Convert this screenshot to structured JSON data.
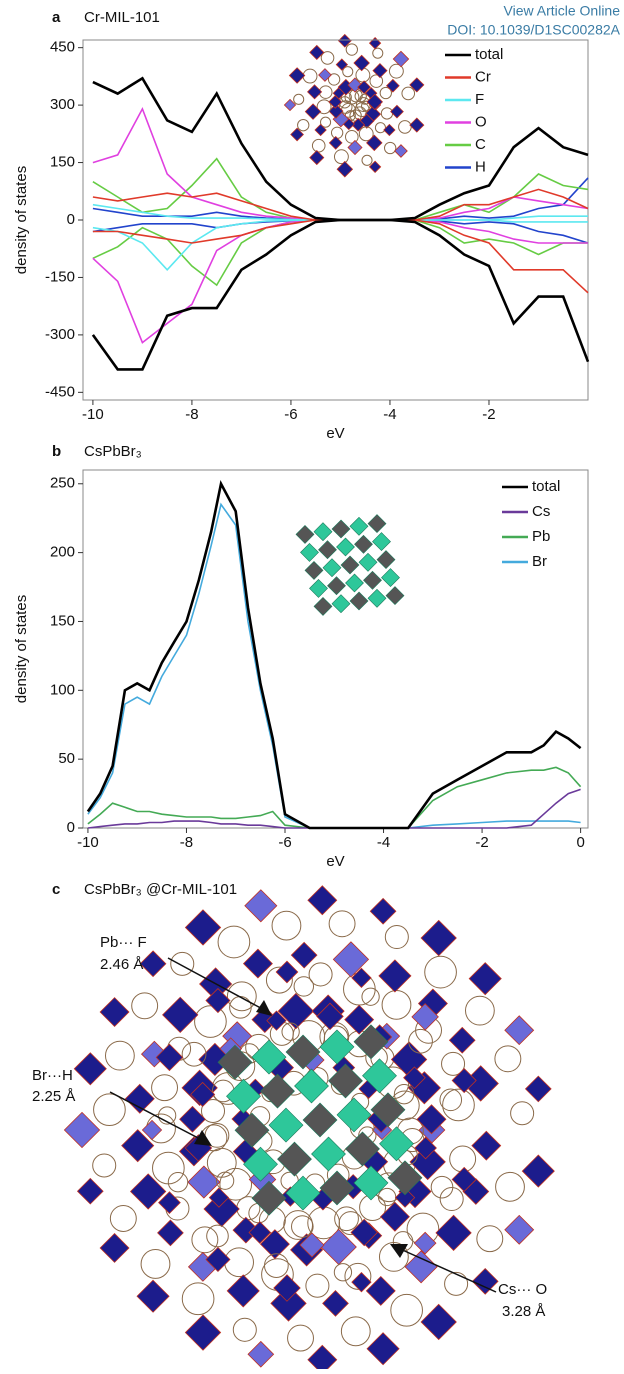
{
  "header": {
    "link": "View Article Online",
    "doi": "DOI: 10.1039/D1SC00282A"
  },
  "chart_data": [
    {
      "type": "line",
      "panel_label": "a",
      "title": "Cr-MIL-101",
      "x_label": "eV",
      "y_label": "density of states",
      "xlim": [
        -10.2,
        0
      ],
      "xticks": [
        -10,
        -8,
        -6,
        -4,
        -2
      ],
      "ylim": [
        -470,
        470
      ],
      "yticks": [
        -450,
        -300,
        -150,
        0,
        150,
        300,
        450
      ],
      "x": [
        -10,
        -9.5,
        -9,
        -8.5,
        -8,
        -7.5,
        -7,
        -6.5,
        -6,
        -5.5,
        -5,
        -4.5,
        -4,
        -3.5,
        -3,
        -2.5,
        -2,
        -1.5,
        -1,
        -0.5,
        0
      ],
      "series": [
        {
          "name": "total",
          "color": "#000000",
          "values": [
            360,
            330,
            370,
            260,
            230,
            330,
            200,
            100,
            40,
            5,
            0,
            0,
            0,
            5,
            40,
            70,
            90,
            190,
            240,
            190,
            170
          ],
          "spin_down": [
            -300,
            -390,
            -390,
            -250,
            -230,
            -230,
            -130,
            -90,
            -40,
            -5,
            0,
            0,
            0,
            -5,
            -40,
            -90,
            -120,
            -270,
            -200,
            -200,
            -370
          ]
        },
        {
          "name": "Cr",
          "color": "#e03a2a",
          "values": [
            60,
            50,
            60,
            70,
            60,
            70,
            50,
            30,
            10,
            0,
            0,
            0,
            0,
            0,
            10,
            40,
            40,
            60,
            80,
            60,
            30
          ],
          "spin_down": [
            -30,
            -30,
            -40,
            -50,
            -60,
            -50,
            -40,
            -20,
            -10,
            0,
            0,
            0,
            0,
            0,
            -10,
            -40,
            -60,
            -130,
            -130,
            -130,
            -190
          ]
        },
        {
          "name": "F",
          "color": "#5ce8f0",
          "values": [
            40,
            30,
            20,
            10,
            5,
            5,
            5,
            3,
            1,
            0,
            0,
            0,
            0,
            0,
            0,
            0,
            0,
            5,
            10,
            10,
            10
          ],
          "spin_down": [
            -20,
            -30,
            -60,
            -130,
            -60,
            -20,
            -10,
            -3,
            -1,
            0,
            0,
            0,
            0,
            0,
            0,
            0,
            0,
            -5,
            -5,
            -5,
            -5
          ]
        },
        {
          "name": "O",
          "color": "#e040e0",
          "values": [
            150,
            170,
            290,
            120,
            60,
            40,
            20,
            10,
            5,
            0,
            0,
            0,
            0,
            0,
            5,
            20,
            30,
            60,
            50,
            40,
            30
          ],
          "spin_down": [
            -100,
            -160,
            -320,
            -270,
            -220,
            -80,
            -40,
            -20,
            -5,
            0,
            0,
            0,
            0,
            0,
            -5,
            -20,
            -30,
            -50,
            -60,
            -60,
            -60
          ]
        },
        {
          "name": "C",
          "color": "#66cc44",
          "values": [
            100,
            60,
            20,
            30,
            90,
            160,
            60,
            20,
            5,
            0,
            0,
            0,
            0,
            0,
            20,
            40,
            20,
            60,
            120,
            90,
            80
          ],
          "spin_down": [
            -100,
            -70,
            -20,
            -50,
            -120,
            -170,
            -60,
            -20,
            -5,
            0,
            0,
            0,
            0,
            0,
            -20,
            -60,
            -50,
            -60,
            -90,
            -60,
            -60
          ]
        },
        {
          "name": "H",
          "color": "#2244cc",
          "values": [
            30,
            20,
            10,
            10,
            10,
            20,
            10,
            5,
            2,
            0,
            0,
            0,
            0,
            0,
            3,
            10,
            5,
            10,
            30,
            40,
            110
          ],
          "spin_down": [
            -30,
            -20,
            -10,
            -10,
            -10,
            -20,
            -10,
            -5,
            -2,
            0,
            0,
            0,
            0,
            0,
            -3,
            -10,
            -5,
            -10,
            -30,
            -40,
            -60
          ]
        }
      ]
    },
    {
      "type": "line",
      "panel_label": "b",
      "title": "CsPbBr₃",
      "x_label": "eV",
      "y_label": "density of states",
      "xlim": [
        -10.1,
        0.15
      ],
      "xticks": [
        -10,
        -8,
        -6,
        -4,
        -2,
        0
      ],
      "ylim": [
        0,
        260
      ],
      "yticks": [
        0,
        50,
        100,
        150,
        200,
        250
      ],
      "x": [
        -10,
        -9.75,
        -9.5,
        -9.25,
        -9,
        -8.75,
        -8.5,
        -8.25,
        -8,
        -7.75,
        -7.5,
        -7.3,
        -7,
        -6.75,
        -6.5,
        -6.25,
        -6,
        -5.5,
        -5,
        -4.5,
        -4,
        -3.5,
        -3,
        -2.5,
        -2,
        -1.5,
        -1,
        -0.75,
        -0.5,
        -0.25,
        0
      ],
      "series": [
        {
          "name": "total",
          "color": "#000000",
          "values": [
            12,
            25,
            45,
            100,
            105,
            100,
            120,
            135,
            150,
            180,
            215,
            250,
            230,
            160,
            105,
            65,
            10,
            0,
            0,
            0,
            0,
            0,
            25,
            35,
            45,
            55,
            55,
            60,
            70,
            65,
            58
          ]
        },
        {
          "name": "Cs",
          "color": "#6a3a9a",
          "values": [
            0,
            1,
            2,
            3,
            3,
            4,
            4,
            5,
            5,
            5,
            4,
            3,
            3,
            2,
            2,
            1,
            0,
            0,
            0,
            0,
            0,
            0,
            0,
            0,
            0,
            0,
            2,
            10,
            18,
            25,
            28
          ]
        },
        {
          "name": "Pb",
          "color": "#44aa55",
          "values": [
            3,
            10,
            18,
            15,
            12,
            12,
            10,
            9,
            8,
            8,
            8,
            7,
            7,
            8,
            9,
            12,
            2,
            0,
            0,
            0,
            0,
            0,
            20,
            30,
            35,
            40,
            42,
            42,
            44,
            40,
            30
          ]
        },
        {
          "name": "Br",
          "color": "#44aadd",
          "values": [
            10,
            22,
            40,
            90,
            95,
            90,
            110,
            125,
            140,
            170,
            205,
            235,
            220,
            150,
            100,
            60,
            8,
            0,
            0,
            0,
            0,
            0,
            2,
            3,
            4,
            5,
            5,
            5,
            5,
            5,
            4
          ]
        }
      ]
    }
  ],
  "panel_c": {
    "label": "c",
    "title": "CsPbBr₃ @Cr-MIL-101",
    "annotations": [
      {
        "bond": "Pb··· F",
        "distance": "2.46 Å"
      },
      {
        "bond": "Br···H",
        "distance": "2.25 Å"
      },
      {
        "bond": "Cs··· O",
        "distance": "3.28 Å"
      }
    ]
  }
}
